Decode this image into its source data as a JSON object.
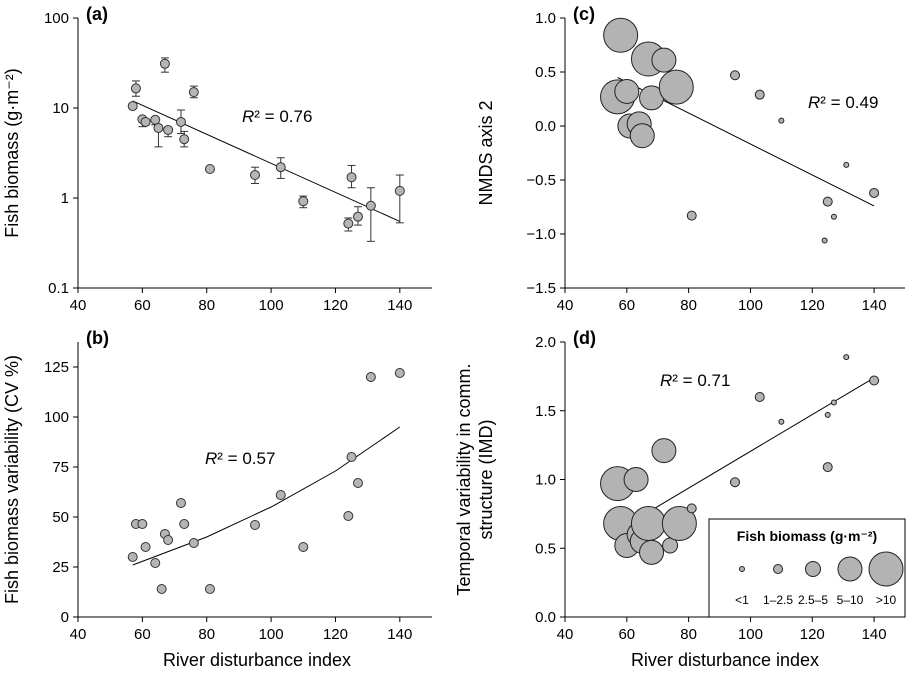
{
  "figure": {
    "bottom_xlabel_left": "River disturbance index",
    "bottom_xlabel_right": "River disturbance index"
  },
  "chart_data": [
    {
      "id": "a",
      "panel_label": "(a)",
      "type": "scatter",
      "ylabel": "Fish biomass (g·m⁻²)",
      "yscale": "log",
      "xlim": [
        40,
        150
      ],
      "ylim": [
        0.1,
        100
      ],
      "xticks": [
        40,
        60,
        80,
        100,
        120,
        140
      ],
      "yticks": [
        0.1,
        1,
        10,
        100
      ],
      "ytick_labels": [
        "0.1",
        "1",
        "10",
        "100"
      ],
      "annotation": {
        "label": "R² = 0.76"
      },
      "points": [
        {
          "x": 57,
          "y": 10.5,
          "lo": 10.5,
          "hi": 10.5
        },
        {
          "x": 58,
          "y": 16.5,
          "lo": 13.5,
          "hi": 20.0
        },
        {
          "x": 60,
          "y": 7.5,
          "lo": 6.2,
          "hi": 7.5
        },
        {
          "x": 61,
          "y": 7.0,
          "lo": 7.0,
          "hi": 7.0
        },
        {
          "x": 64,
          "y": 7.4,
          "lo": 6.5,
          "hi": 7.4
        },
        {
          "x": 65,
          "y": 6.0,
          "lo": 3.7,
          "hi": 6.0
        },
        {
          "x": 67,
          "y": 31.0,
          "lo": 25.0,
          "hi": 36.0
        },
        {
          "x": 68,
          "y": 5.7,
          "lo": 4.8,
          "hi": 5.7
        },
        {
          "x": 72,
          "y": 7.0,
          "lo": 5.2,
          "hi": 9.5
        },
        {
          "x": 73,
          "y": 4.5,
          "lo": 3.7,
          "hi": 5.5
        },
        {
          "x": 76,
          "y": 15.0,
          "lo": 13.0,
          "hi": 17.5
        },
        {
          "x": 81,
          "y": 2.1,
          "lo": 2.1,
          "hi": 2.1
        },
        {
          "x": 95,
          "y": 1.8,
          "lo": 1.45,
          "hi": 2.2
        },
        {
          "x": 103,
          "y": 2.2,
          "lo": 1.65,
          "hi": 2.8
        },
        {
          "x": 110,
          "y": 0.92,
          "lo": 0.78,
          "hi": 1.05
        },
        {
          "x": 124,
          "y": 0.52,
          "lo": 0.43,
          "hi": 0.6
        },
        {
          "x": 125,
          "y": 1.7,
          "lo": 1.3,
          "hi": 2.3
        },
        {
          "x": 127,
          "y": 0.62,
          "lo": 0.5,
          "hi": 0.8
        },
        {
          "x": 131,
          "y": 0.82,
          "lo": 0.33,
          "hi": 1.3
        },
        {
          "x": 140,
          "y": 1.2,
          "lo": 0.53,
          "hi": 1.8
        }
      ],
      "fit": {
        "x": [
          57,
          140
        ],
        "y": [
          12.0,
          0.55
        ]
      }
    },
    {
      "id": "b",
      "panel_label": "(b)",
      "type": "scatter",
      "ylabel": "Fish biomass variability (CV %)",
      "yscale": "linear",
      "xlim": [
        40,
        150
      ],
      "ylim": [
        0,
        137.5
      ],
      "xticks": [
        40,
        60,
        80,
        100,
        120,
        140
      ],
      "yticks": [
        0,
        25,
        50,
        75,
        100,
        125
      ],
      "ytick_labels": [
        "0",
        "25",
        "50",
        "75",
        "100",
        "125"
      ],
      "annotation": {
        "label": "R² = 0.57"
      },
      "points": [
        {
          "x": 57,
          "y": 30
        },
        {
          "x": 58,
          "y": 46.5
        },
        {
          "x": 60,
          "y": 46.5
        },
        {
          "x": 61,
          "y": 35
        },
        {
          "x": 64,
          "y": 27
        },
        {
          "x": 66,
          "y": 14
        },
        {
          "x": 67,
          "y": 41.5
        },
        {
          "x": 68,
          "y": 38.5
        },
        {
          "x": 72,
          "y": 57
        },
        {
          "x": 73,
          "y": 46.5
        },
        {
          "x": 76,
          "y": 37
        },
        {
          "x": 81,
          "y": 14
        },
        {
          "x": 95,
          "y": 46
        },
        {
          "x": 103,
          "y": 61
        },
        {
          "x": 110,
          "y": 35
        },
        {
          "x": 124,
          "y": 50.5
        },
        {
          "x": 125,
          "y": 80
        },
        {
          "x": 127,
          "y": 67
        },
        {
          "x": 131,
          "y": 120
        },
        {
          "x": 140,
          "y": 122
        }
      ],
      "fit": {
        "x": [
          57,
          80,
          100,
          120,
          140
        ],
        "y": [
          26,
          40,
          55,
          73,
          95
        ]
      }
    },
    {
      "id": "c",
      "panel_label": "(c)",
      "type": "scatter",
      "ylabel": "NMDS axis 2",
      "yscale": "linear",
      "xlim": [
        40,
        150
      ],
      "ylim": [
        -1.5,
        1.0
      ],
      "xticks": [
        40,
        60,
        80,
        100,
        120,
        140
      ],
      "yticks": [
        -1.5,
        -1.0,
        -0.5,
        0.0,
        0.5,
        1.0
      ],
      "ytick_labels": [
        "−1.5",
        "−1.0",
        "−0.5",
        "0.0",
        "0.5",
        "1.0"
      ],
      "annotation": {
        "label": "R² = 0.49"
      },
      "points": [
        {
          "x": 58,
          "y": 0.84,
          "biomass": 16.5
        },
        {
          "x": 57,
          "y": 0.27,
          "biomass": 10.5
        },
        {
          "x": 60,
          "y": 0.32,
          "biomass": 7.5
        },
        {
          "x": 61,
          "y": 0.0,
          "biomass": 7.0
        },
        {
          "x": 64,
          "y": 0.02,
          "biomass": 7.4
        },
        {
          "x": 65,
          "y": -0.09,
          "biomass": 6.0
        },
        {
          "x": 67,
          "y": 0.62,
          "biomass": 31.0
        },
        {
          "x": 68,
          "y": 0.26,
          "biomass": 5.7
        },
        {
          "x": 72,
          "y": 0.61,
          "biomass": 7.0
        },
        {
          "x": 73,
          "y": 0.37,
          "biomass": 4.5
        },
        {
          "x": 76,
          "y": 0.36,
          "biomass": 15.0
        },
        {
          "x": 81,
          "y": -0.83,
          "biomass": 2.1
        },
        {
          "x": 95,
          "y": 0.47,
          "biomass": 1.8
        },
        {
          "x": 103,
          "y": 0.29,
          "biomass": 2.2
        },
        {
          "x": 110,
          "y": 0.05,
          "biomass": 0.92
        },
        {
          "x": 124,
          "y": -1.06,
          "biomass": 0.52
        },
        {
          "x": 125,
          "y": -0.7,
          "biomass": 1.7
        },
        {
          "x": 127,
          "y": -0.84,
          "biomass": 0.62
        },
        {
          "x": 131,
          "y": -0.36,
          "biomass": 0.82
        },
        {
          "x": 140,
          "y": -0.62,
          "biomass": 1.2
        }
      ],
      "fit": {
        "x": [
          57,
          140
        ],
        "y": [
          0.45,
          -0.74
        ]
      }
    },
    {
      "id": "d",
      "panel_label": "(d)",
      "type": "scatter",
      "ylabel": "Temporal variability in comm. structure (IMD)",
      "yscale": "linear",
      "xlim": [
        40,
        150
      ],
      "ylim": [
        0.0,
        2.0
      ],
      "xticks": [
        40,
        60,
        80,
        100,
        120,
        140
      ],
      "yticks": [
        0.0,
        0.5,
        1.0,
        1.5,
        2.0
      ],
      "ytick_labels": [
        "0.0",
        "0.5",
        "1.0",
        "1.5",
        "2.0"
      ],
      "annotation": {
        "label": "R² = 0.71"
      },
      "points": [
        {
          "x": 57,
          "y": 0.97,
          "biomass": 16.5
        },
        {
          "x": 58,
          "y": 0.68,
          "biomass": 10.5
        },
        {
          "x": 60,
          "y": 0.52,
          "biomass": 7.5
        },
        {
          "x": 63,
          "y": 1.0,
          "biomass": 7.4
        },
        {
          "x": 64,
          "y": 0.6,
          "biomass": 7.0
        },
        {
          "x": 65,
          "y": 0.55,
          "biomass": 6.0
        },
        {
          "x": 67,
          "y": 0.68,
          "biomass": 31.0
        },
        {
          "x": 68,
          "y": 0.47,
          "biomass": 5.7
        },
        {
          "x": 72,
          "y": 1.21,
          "biomass": 7.0
        },
        {
          "x": 74,
          "y": 0.52,
          "biomass": 4.5
        },
        {
          "x": 77,
          "y": 0.68,
          "biomass": 15.0
        },
        {
          "x": 81,
          "y": 0.79,
          "biomass": 2.1
        },
        {
          "x": 95,
          "y": 0.98,
          "biomass": 1.8
        },
        {
          "x": 103,
          "y": 1.6,
          "biomass": 2.2
        },
        {
          "x": 110,
          "y": 1.42,
          "biomass": 0.92
        },
        {
          "x": 125,
          "y": 1.47,
          "biomass": 0.52
        },
        {
          "x": 125,
          "y": 1.09,
          "biomass": 1.7
        },
        {
          "x": 127,
          "y": 1.56,
          "biomass": 0.62
        },
        {
          "x": 131,
          "y": 1.89,
          "biomass": 0.82
        },
        {
          "x": 140,
          "y": 1.72,
          "biomass": 1.2
        }
      ],
      "fit": {
        "x": [
          57,
          140
        ],
        "y": [
          0.63,
          1.74
        ]
      }
    }
  ],
  "legend": {
    "title": "Fish biomass (g·m⁻²)",
    "items": [
      {
        "label": "<1",
        "biomass": 0.5
      },
      {
        "label": "1–2.5",
        "biomass": 1.75
      },
      {
        "label": "2.5–5",
        "biomass": 3.75
      },
      {
        "label": "5–10",
        "biomass": 7.5
      },
      {
        "label": ">10",
        "biomass": 20
      }
    ]
  }
}
